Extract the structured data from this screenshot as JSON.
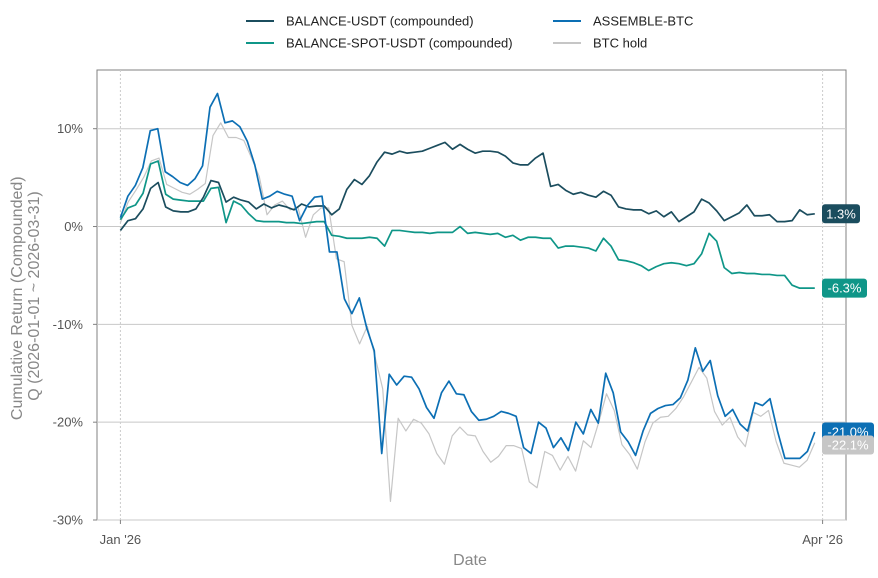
{
  "chart_data": {
    "type": "line",
    "title": "",
    "xlabel": "Date",
    "ylabel_lines": [
      "Cumulative Return (Compounded)",
      "Q (2026-01-01 ~ 2026-03-31)"
    ],
    "x_start": "2026-01-01",
    "x_end": "2026-03-31",
    "x_ticks": [
      {
        "date": "2026-01-01",
        "label": "Jan '26"
      },
      {
        "date": "2026-04-01",
        "label": "Apr '26"
      }
    ],
    "xlim": [
      "2025-12-29",
      "2026-04-04"
    ],
    "ylim": [
      -30,
      16
    ],
    "y_ticks": [
      -30,
      -20,
      -10,
      0,
      10
    ],
    "y_tick_labels": [
      "-30%",
      "-20%",
      "-10%",
      "0%",
      "10%"
    ],
    "grid": true,
    "legend_position": "top-center",
    "series": [
      {
        "name": "BALANCE-USDT (compounded)",
        "color": "#1b4d5e",
        "end_label": "1.3%",
        "values": [
          -0.4,
          0.6,
          0.8,
          1.8,
          3.9,
          4.5,
          2.0,
          1.6,
          1.5,
          1.5,
          1.8,
          3.0,
          4.7,
          4.5,
          2.5,
          3.0,
          2.7,
          2.5,
          1.8,
          2.3,
          1.9,
          2.2,
          2.0,
          1.7,
          2.3,
          2.0,
          2.1,
          2.1,
          1.2,
          1.8,
          3.8,
          4.8,
          4.3,
          5.2,
          6.6,
          7.6,
          7.4,
          7.7,
          7.5,
          7.6,
          7.7,
          8.0,
          8.3,
          8.6,
          7.9,
          8.4,
          7.9,
          7.5,
          7.7,
          7.7,
          7.6,
          7.2,
          6.5,
          6.3,
          6.3,
          7.0,
          7.5,
          4.1,
          4.3,
          3.7,
          3.3,
          3.5,
          3.2,
          3.0,
          3.6,
          3.2,
          2.0,
          1.8,
          1.7,
          1.7,
          1.3,
          1.6,
          1.0,
          1.5,
          0.5,
          1.0,
          1.5,
          2.8,
          2.4,
          1.6,
          0.6,
          1.0,
          1.4,
          2.2,
          1.1,
          1.1,
          1.2,
          0.5,
          0.5,
          0.6,
          1.7,
          1.2,
          1.3
        ]
      },
      {
        "name": "BALANCE-SPOT-USDT (compounded)",
        "color": "#0f9688",
        "end_label": "-6.3%",
        "values": [
          0.7,
          1.9,
          2.2,
          3.4,
          6.4,
          6.7,
          3.3,
          2.8,
          2.7,
          2.6,
          2.6,
          2.6,
          3.9,
          4.0,
          0.4,
          2.6,
          2.2,
          1.3,
          0.6,
          0.5,
          0.5,
          0.5,
          0.4,
          0.4,
          0.3,
          0.4,
          0.5,
          0.5,
          -0.9,
          -1.0,
          -1.2,
          -1.2,
          -1.2,
          -1.1,
          -1.2,
          -2.0,
          -0.4,
          -0.4,
          -0.5,
          -0.6,
          -0.6,
          -0.7,
          -0.6,
          -0.6,
          -0.6,
          0.0,
          -0.7,
          -0.6,
          -0.7,
          -0.8,
          -0.7,
          -1.1,
          -0.9,
          -1.4,
          -1.1,
          -1.1,
          -1.2,
          -1.2,
          -2.2,
          -2.0,
          -2.0,
          -2.1,
          -2.2,
          -2.5,
          -1.2,
          -2.0,
          -3.4,
          -3.5,
          -3.7,
          -4.0,
          -4.5,
          -4.1,
          -3.8,
          -3.7,
          -3.8,
          -4.0,
          -3.8,
          -2.8,
          -0.7,
          -1.5,
          -4.2,
          -4.8,
          -4.7,
          -4.8,
          -4.8,
          -4.9,
          -4.9,
          -5.0,
          -5.0,
          -6.0,
          -6.3,
          -6.3,
          -6.3
        ]
      },
      {
        "name": "ASSEMBLE-BTC",
        "color": "#0c6fb4",
        "end_label": "-21.0%",
        "values": [
          0.9,
          3.1,
          4.2,
          6.0,
          9.8,
          10.0,
          5.6,
          5.1,
          4.5,
          4.2,
          4.9,
          6.2,
          12.2,
          13.6,
          10.6,
          10.8,
          10.2,
          8.7,
          6.3,
          2.8,
          3.1,
          3.6,
          3.3,
          3.1,
          0.6,
          2.1,
          3.0,
          3.1,
          -2.6,
          -2.6,
          -7.4,
          -8.9,
          -7.3,
          -10.4,
          -12.7,
          -23.2,
          -15.1,
          -16.2,
          -15.3,
          -15.4,
          -16.6,
          -18.5,
          -19.6,
          -17.0,
          -15.8,
          -17.1,
          -17.2,
          -18.9,
          -19.8,
          -19.7,
          -19.4,
          -18.9,
          -19.1,
          -19.4,
          -22.6,
          -23.2,
          -20.0,
          -20.6,
          -22.6,
          -21.6,
          -22.9,
          -20.0,
          -21.2,
          -18.7,
          -20.1,
          -15.0,
          -17.0,
          -21.0,
          -22.0,
          -23.4,
          -20.9,
          -19.1,
          -18.6,
          -18.3,
          -18.2,
          -17.5,
          -15.7,
          -12.4,
          -14.8,
          -13.7,
          -17.3,
          -19.4,
          -18.7,
          -20.2,
          -20.9,
          -18.0,
          -18.3,
          -17.6,
          -20.9,
          -23.7,
          -23.7,
          -23.7,
          -23.0,
          -21.0
        ]
      },
      {
        "name": "BTC hold",
        "color": "#c6c6c6",
        "end_label": "-22.1%",
        "values": [
          0.4,
          2.5,
          3.7,
          5.0,
          6.7,
          7.0,
          4.3,
          3.9,
          3.5,
          3.3,
          3.8,
          4.4,
          9.3,
          10.6,
          9.1,
          9.1,
          8.8,
          7.0,
          5.1,
          1.2,
          2.2,
          2.6,
          1.7,
          2.0,
          -1.1,
          1.2,
          1.9,
          1.9,
          -3.3,
          -3.6,
          -10.1,
          -12.0,
          -10.2,
          -13.3,
          -16.6,
          -28.1,
          -19.6,
          -20.9,
          -19.7,
          -20.1,
          -21.2,
          -23.2,
          -24.3,
          -21.4,
          -20.5,
          -21.3,
          -21.4,
          -23.0,
          -24.1,
          -23.5,
          -22.4,
          -22.4,
          -22.7,
          -26.1,
          -26.7,
          -23.0,
          -23.4,
          -24.9,
          -23.5,
          -25.0,
          -21.9,
          -22.6,
          -20.0,
          -17.1,
          -18.8,
          -22.3,
          -23.3,
          -24.8,
          -22.0,
          -20.1,
          -19.5,
          -19.4,
          -18.6,
          -17.4,
          -15.9,
          -14.4,
          -15.5,
          -18.9,
          -20.3,
          -19.5,
          -21.5,
          -22.5,
          -19.0,
          -19.4,
          -18.8,
          -22.0,
          -24.2,
          -24.4,
          -24.6,
          -23.9,
          -22.1
        ]
      }
    ]
  }
}
